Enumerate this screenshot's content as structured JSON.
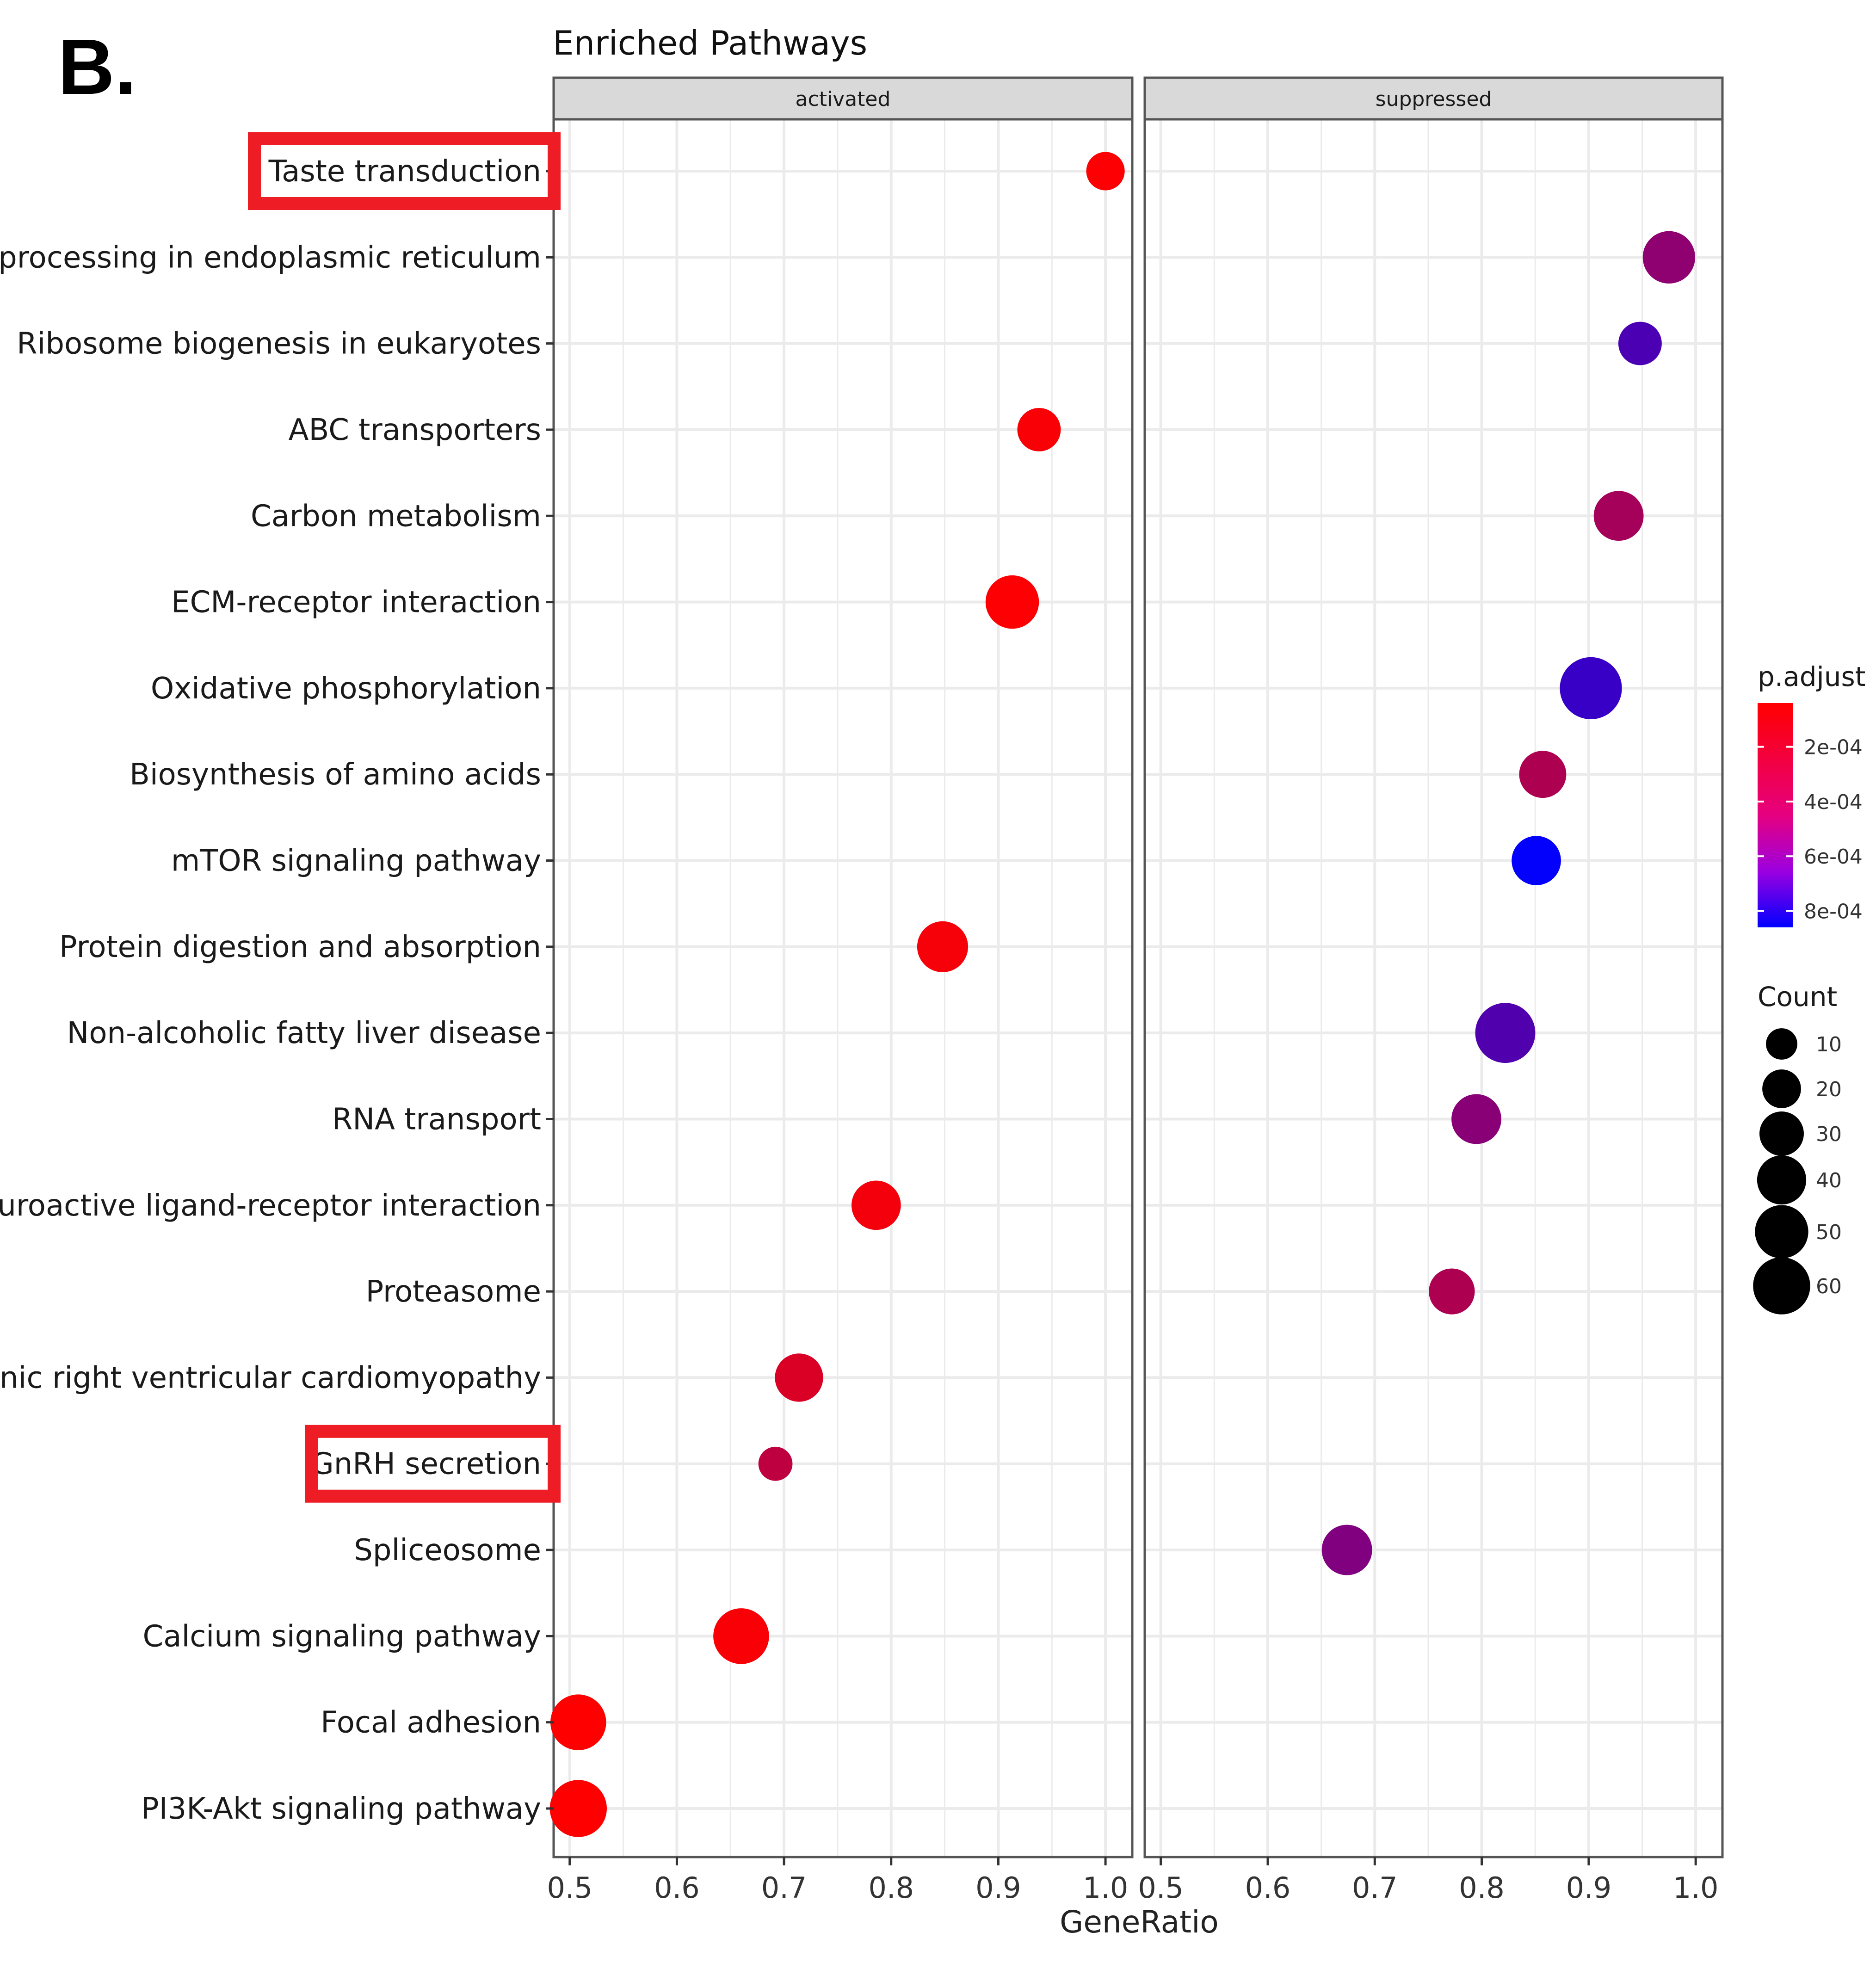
{
  "panel_label": "B.",
  "chart_data": {
    "type": "scatter",
    "title": "Enriched Pathways",
    "xlabel": "GeneRatio",
    "ylabel": "",
    "xlim": [
      0.485,
      1.025
    ],
    "x_ticks": [
      "0.5",
      "0.6",
      "0.7",
      "0.8",
      "0.9",
      "1.0"
    ],
    "x_tick_values": [
      0.5,
      0.6,
      0.7,
      0.8,
      0.9,
      1.0
    ],
    "facets": [
      "activated",
      "suppressed"
    ],
    "categories": [
      "Taste transduction",
      "Protein processing in endoplasmic reticulum",
      "Ribosome biogenesis in eukaryotes",
      "ABC transporters",
      "Carbon metabolism",
      "ECM-receptor interaction",
      "Oxidative phosphorylation",
      "Biosynthesis of amino acids",
      "mTOR signaling pathway",
      "Protein digestion and absorption",
      "Non-alcoholic fatty liver disease",
      "RNA transport",
      "Neuroactive ligand-receptor interaction",
      "Proteasome",
      "Arrhythmogenic right ventricular cardiomyopathy",
      "GnRH secretion",
      "Spliceosome",
      "Calcium signaling pathway",
      "Focal adhesion",
      "PI3K-Akt signaling pathway"
    ],
    "highlighted": [
      "Taste transduction",
      "GnRH secretion"
    ],
    "points": [
      {
        "pathway": "Taste transduction",
        "facet": "activated",
        "gene_ratio": 1.0,
        "count": 15,
        "p_adjust": 5e-05
      },
      {
        "pathway": "Protein processing in endoplasmic reticulum",
        "facet": "suppressed",
        "gene_ratio": 0.975,
        "count": 38,
        "p_adjust": 0.0004
      },
      {
        "pathway": "Ribosome biogenesis in eukaryotes",
        "facet": "suppressed",
        "gene_ratio": 0.948,
        "count": 22,
        "p_adjust": 0.00062
      },
      {
        "pathway": "ABC transporters",
        "facet": "activated",
        "gene_ratio": 0.938,
        "count": 22,
        "p_adjust": 6e-05
      },
      {
        "pathway": "Carbon metabolism",
        "facet": "suppressed",
        "gene_ratio": 0.928,
        "count": 33,
        "p_adjust": 0.00033
      },
      {
        "pathway": "ECM-receptor interaction",
        "facet": "activated",
        "gene_ratio": 0.913,
        "count": 40,
        "p_adjust": 5e-05
      },
      {
        "pathway": "Oxidative phosphorylation",
        "facet": "suppressed",
        "gene_ratio": 0.902,
        "count": 60,
        "p_adjust": 0.00068
      },
      {
        "pathway": "Biosynthesis of amino acids",
        "facet": "suppressed",
        "gene_ratio": 0.857,
        "count": 28,
        "p_adjust": 0.0003
      },
      {
        "pathway": "mTOR signaling pathway",
        "facet": "suppressed",
        "gene_ratio": 0.851,
        "count": 32,
        "p_adjust": 0.00085
      },
      {
        "pathway": "Protein digestion and absorption",
        "facet": "activated",
        "gene_ratio": 0.848,
        "count": 35,
        "p_adjust": 7e-05
      },
      {
        "pathway": "Non-alcoholic fatty liver disease",
        "facet": "suppressed",
        "gene_ratio": 0.822,
        "count": 55,
        "p_adjust": 0.0006
      },
      {
        "pathway": "RNA transport",
        "facet": "suppressed",
        "gene_ratio": 0.795,
        "count": 33,
        "p_adjust": 0.00042
      },
      {
        "pathway": "Neuroactive ligand-receptor interaction",
        "facet": "activated",
        "gene_ratio": 0.786,
        "count": 32,
        "p_adjust": 8e-05
      },
      {
        "pathway": "Proteasome",
        "facet": "suppressed",
        "gene_ratio": 0.772,
        "count": 26,
        "p_adjust": 0.0003
      },
      {
        "pathway": "Arrhythmogenic right ventricular cardiomyopathy",
        "facet": "activated",
        "gene_ratio": 0.714,
        "count": 30,
        "p_adjust": 0.00016
      },
      {
        "pathway": "GnRH secretion",
        "facet": "activated",
        "gene_ratio": 0.692,
        "count": 10,
        "p_adjust": 0.00025
      },
      {
        "pathway": "Spliceosome",
        "facet": "suppressed",
        "gene_ratio": 0.674,
        "count": 34,
        "p_adjust": 0.00045
      },
      {
        "pathway": "Calcium signaling pathway",
        "facet": "activated",
        "gene_ratio": 0.66,
        "count": 45,
        "p_adjust": 6e-05
      },
      {
        "pathway": "Focal adhesion",
        "facet": "activated",
        "gene_ratio": 0.508,
        "count": 45,
        "p_adjust": 4e-05
      },
      {
        "pathway": "PI3K-Akt signaling pathway",
        "facet": "activated",
        "gene_ratio": 0.508,
        "count": 48,
        "p_adjust": 4e-05
      }
    ],
    "color_legend": {
      "title": "p.adjust",
      "labels": [
        "2e-04",
        "4e-04",
        "6e-04",
        "8e-04"
      ],
      "values": [
        0.0002,
        0.0004,
        0.0006,
        0.0008
      ],
      "range": [
        4e-05,
        0.00086
      ],
      "low_color": "#ff0000",
      "high_color": "#0000ff"
    },
    "size_legend": {
      "title": "Count",
      "labels": [
        "10",
        "20",
        "30",
        "40",
        "50",
        "60"
      ],
      "values": [
        10,
        20,
        30,
        40,
        50,
        60
      ]
    },
    "strip_color": "#d9d9d9",
    "grid_color": "#ebebeb",
    "highlight_color": "#ee1c25"
  }
}
